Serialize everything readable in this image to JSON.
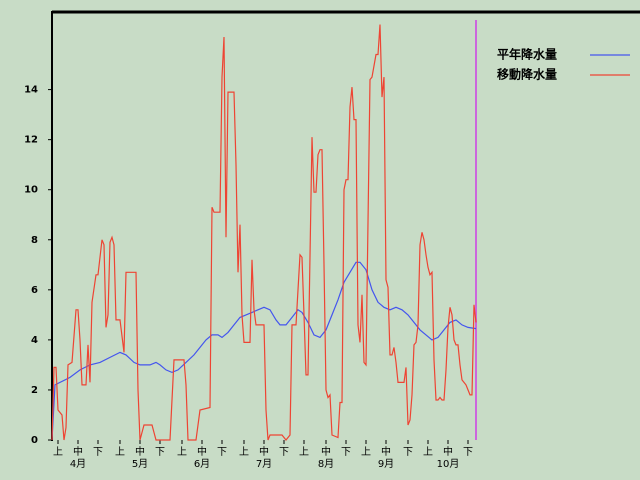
{
  "chart_data": {
    "type": "line",
    "xlim": [
      0,
      213
    ],
    "ylim": [
      0,
      17.1
    ],
    "yticks": [
      0,
      2,
      4,
      6,
      8,
      10,
      12,
      14
    ],
    "xticks": [
      {
        "value": 3,
        "label": "上"
      },
      {
        "value": 13,
        "label": "中"
      },
      {
        "value": 23,
        "label": "下"
      },
      {
        "value": 34,
        "label": "上"
      },
      {
        "value": 44,
        "label": "中"
      },
      {
        "value": 54,
        "label": "下"
      },
      {
        "value": 65,
        "label": "上"
      },
      {
        "value": 75,
        "label": "中"
      },
      {
        "value": 85,
        "label": "下"
      },
      {
        "value": 96,
        "label": "上"
      },
      {
        "value": 106,
        "label": "中"
      },
      {
        "value": 116,
        "label": "下"
      },
      {
        "value": 126,
        "label": "上"
      },
      {
        "value": 137,
        "label": "中"
      },
      {
        "value": 147,
        "label": "下"
      },
      {
        "value": 157,
        "label": "上"
      },
      {
        "value": 167,
        "label": "中"
      },
      {
        "value": 178,
        "label": "下"
      },
      {
        "value": 188,
        "label": "上"
      },
      {
        "value": 198,
        "label": "中"
      },
      {
        "value": 208,
        "label": "下"
      }
    ],
    "month_labels": [
      {
        "value": 13,
        "label": "4月"
      },
      {
        "value": 44,
        "label": "5月"
      },
      {
        "value": 75,
        "label": "6月"
      },
      {
        "value": 106,
        "label": "7月"
      },
      {
        "value": 137,
        "label": "8月"
      },
      {
        "value": 167,
        "label": "9月"
      },
      {
        "value": 198,
        "label": "10月"
      }
    ],
    "current_line": {
      "x": 212,
      "color": "#cc66dd"
    },
    "series": [
      {
        "name": "平年降水量",
        "color": "#4455ee",
        "x": [
          0,
          1.5,
          4,
          9,
          14,
          19,
          24,
          29,
          34,
          37,
          41,
          44,
          49,
          52,
          54,
          57,
          60,
          63,
          67,
          71,
          74,
          77,
          80,
          83,
          85,
          88,
          91,
          94,
          97,
          100,
          103,
          106,
          109,
          112,
          114,
          117,
          120,
          123,
          125,
          128,
          131,
          134,
          137,
          140,
          143,
          146,
          149,
          152,
          154,
          157,
          160,
          163,
          166,
          169,
          172,
          175,
          178,
          181,
          184,
          187,
          190,
          193,
          196,
          199,
          202,
          205,
          208,
          212
        ],
        "values": [
          0,
          2.2,
          2.3,
          2.5,
          2.8,
          3.0,
          3.1,
          3.3,
          3.5,
          3.4,
          3.1,
          3.0,
          3.0,
          3.1,
          3.0,
          2.8,
          2.7,
          2.8,
          3.1,
          3.4,
          3.7,
          4.0,
          4.2,
          4.2,
          4.1,
          4.3,
          4.6,
          4.9,
          5.0,
          5.1,
          5.2,
          5.3,
          5.2,
          4.8,
          4.6,
          4.6,
          4.9,
          5.2,
          5.1,
          4.7,
          4.2,
          4.1,
          4.4,
          5.0,
          5.6,
          6.3,
          6.7,
          7.1,
          7.1,
          6.8,
          6.0,
          5.5,
          5.3,
          5.2,
          5.3,
          5.2,
          5.0,
          4.7,
          4.4,
          4.2,
          4.0,
          4.1,
          4.4,
          4.7,
          4.8,
          4.6,
          4.5,
          4.45
        ]
      },
      {
        "name": "移動降水量",
        "color": "#ee4433",
        "x": [
          0,
          1,
          2,
          3,
          5,
          6,
          7,
          8,
          10,
          12,
          13,
          14,
          15,
          17,
          18,
          19,
          20,
          22,
          23,
          25,
          26,
          27,
          28,
          29,
          30,
          31,
          32,
          34,
          36,
          37,
          42,
          43,
          44,
          46,
          50,
          52,
          59,
          61,
          66,
          67,
          68,
          72,
          74,
          79,
          80,
          81,
          84,
          85,
          86,
          87,
          88,
          91,
          92,
          93,
          94,
          95,
          96,
          99,
          100,
          101,
          102,
          106,
          107,
          108,
          109,
          115,
          117,
          119,
          120,
          122,
          124,
          125,
          126,
          127,
          128,
          130,
          131,
          132,
          133,
          134,
          135,
          136,
          137,
          138,
          139,
          140,
          143,
          144,
          145,
          146,
          147,
          148,
          149,
          150,
          151,
          152,
          153,
          154,
          155,
          156,
          157,
          159,
          160,
          162,
          163,
          164,
          165,
          166,
          167,
          168,
          169,
          170,
          171,
          172,
          173,
          176,
          177,
          178,
          179,
          180,
          181,
          182,
          183,
          184,
          185,
          186,
          187,
          188,
          189,
          190,
          191,
          192,
          193,
          194,
          195,
          196,
          197,
          198,
          199,
          200,
          201,
          202,
          203,
          204,
          205,
          206,
          207,
          208,
          209,
          210,
          211,
          212
        ],
        "values": [
          0,
          2.9,
          2.9,
          1.2,
          1.0,
          0,
          0.5,
          3.0,
          3.1,
          5.2,
          5.2,
          4.0,
          2.2,
          2.2,
          3.8,
          2.3,
          5.5,
          6.6,
          6.6,
          8.0,
          7.8,
          4.5,
          5.0,
          7.9,
          8.1,
          7.8,
          4.8,
          4.8,
          3.5,
          6.7,
          6.7,
          2.0,
          0,
          0.6,
          0.6,
          0,
          0,
          3.2,
          3.2,
          2.2,
          0,
          0,
          1.2,
          1.3,
          9.3,
          9.1,
          9.1,
          14.5,
          16.1,
          8.1,
          13.9,
          13.9,
          11.0,
          6.7,
          8.6,
          5.0,
          3.9,
          3.9,
          7.2,
          5.2,
          4.6,
          4.6,
          1.2,
          0,
          0.2,
          0.2,
          0,
          0.2,
          4.6,
          4.6,
          7.4,
          7.3,
          5.0,
          2.6,
          2.6,
          12.1,
          9.9,
          9.9,
          11.4,
          11.6,
          11.6,
          7.0,
          2.0,
          1.7,
          1.8,
          0.2,
          0.1,
          1.5,
          1.5,
          10.0,
          10.4,
          10.4,
          13.3,
          14.1,
          12.8,
          12.8,
          4.6,
          3.9,
          5.8,
          3.1,
          3.0,
          14.4,
          14.5,
          15.4,
          15.4,
          16.6,
          13.7,
          14.5,
          6.4,
          6.1,
          3.4,
          3.4,
          3.7,
          3.1,
          2.3,
          2.3,
          2.9,
          0.6,
          0.8,
          1.8,
          3.8,
          3.9,
          4.6,
          7.8,
          8.3,
          8.0,
          7.4,
          6.9,
          6.6,
          6.7,
          3.2,
          1.6,
          1.6,
          1.7,
          1.6,
          1.6,
          2.8,
          4.5,
          5.3,
          5.0,
          4.0,
          3.8,
          3.8,
          3.0,
          2.4,
          2.3,
          2.2,
          2.0,
          1.8,
          1.8,
          5.4,
          4.7
        ]
      }
    ]
  }
}
